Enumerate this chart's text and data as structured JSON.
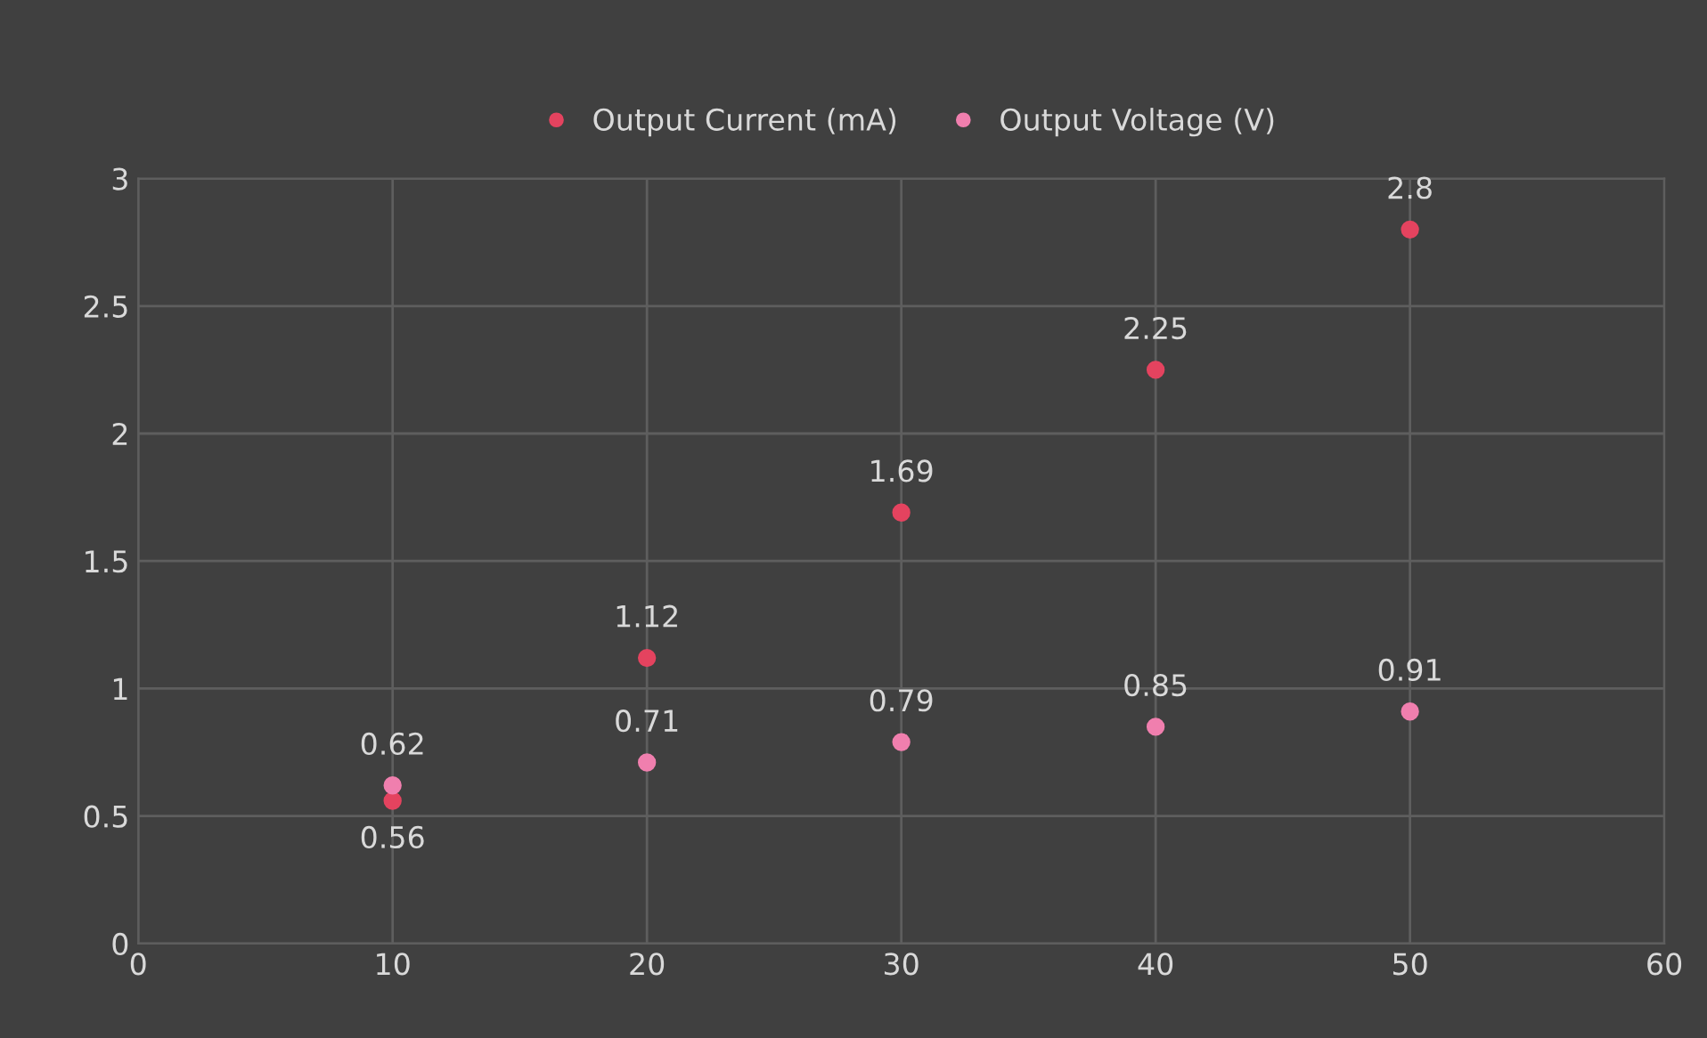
{
  "chart_data": {
    "type": "scatter",
    "x": [
      10,
      20,
      30,
      40,
      50
    ],
    "series": [
      {
        "name": "Output Current (mA)",
        "color": "#e4435f",
        "values": [
          0.56,
          1.12,
          1.69,
          2.25,
          2.8
        ]
      },
      {
        "name": "Output Voltage (V)",
        "color": "#f07fae",
        "values": [
          0.62,
          0.71,
          0.79,
          0.85,
          0.91
        ]
      }
    ],
    "xlim": [
      0,
      60
    ],
    "xticks": [
      0,
      10,
      20,
      30,
      40,
      50,
      60
    ],
    "ylim": [
      0,
      3
    ],
    "yticks": [
      0,
      0.5,
      1,
      1.5,
      2,
      2.5,
      3
    ],
    "grid": true,
    "legend": "top",
    "marker": "circle",
    "data_labels": true
  }
}
